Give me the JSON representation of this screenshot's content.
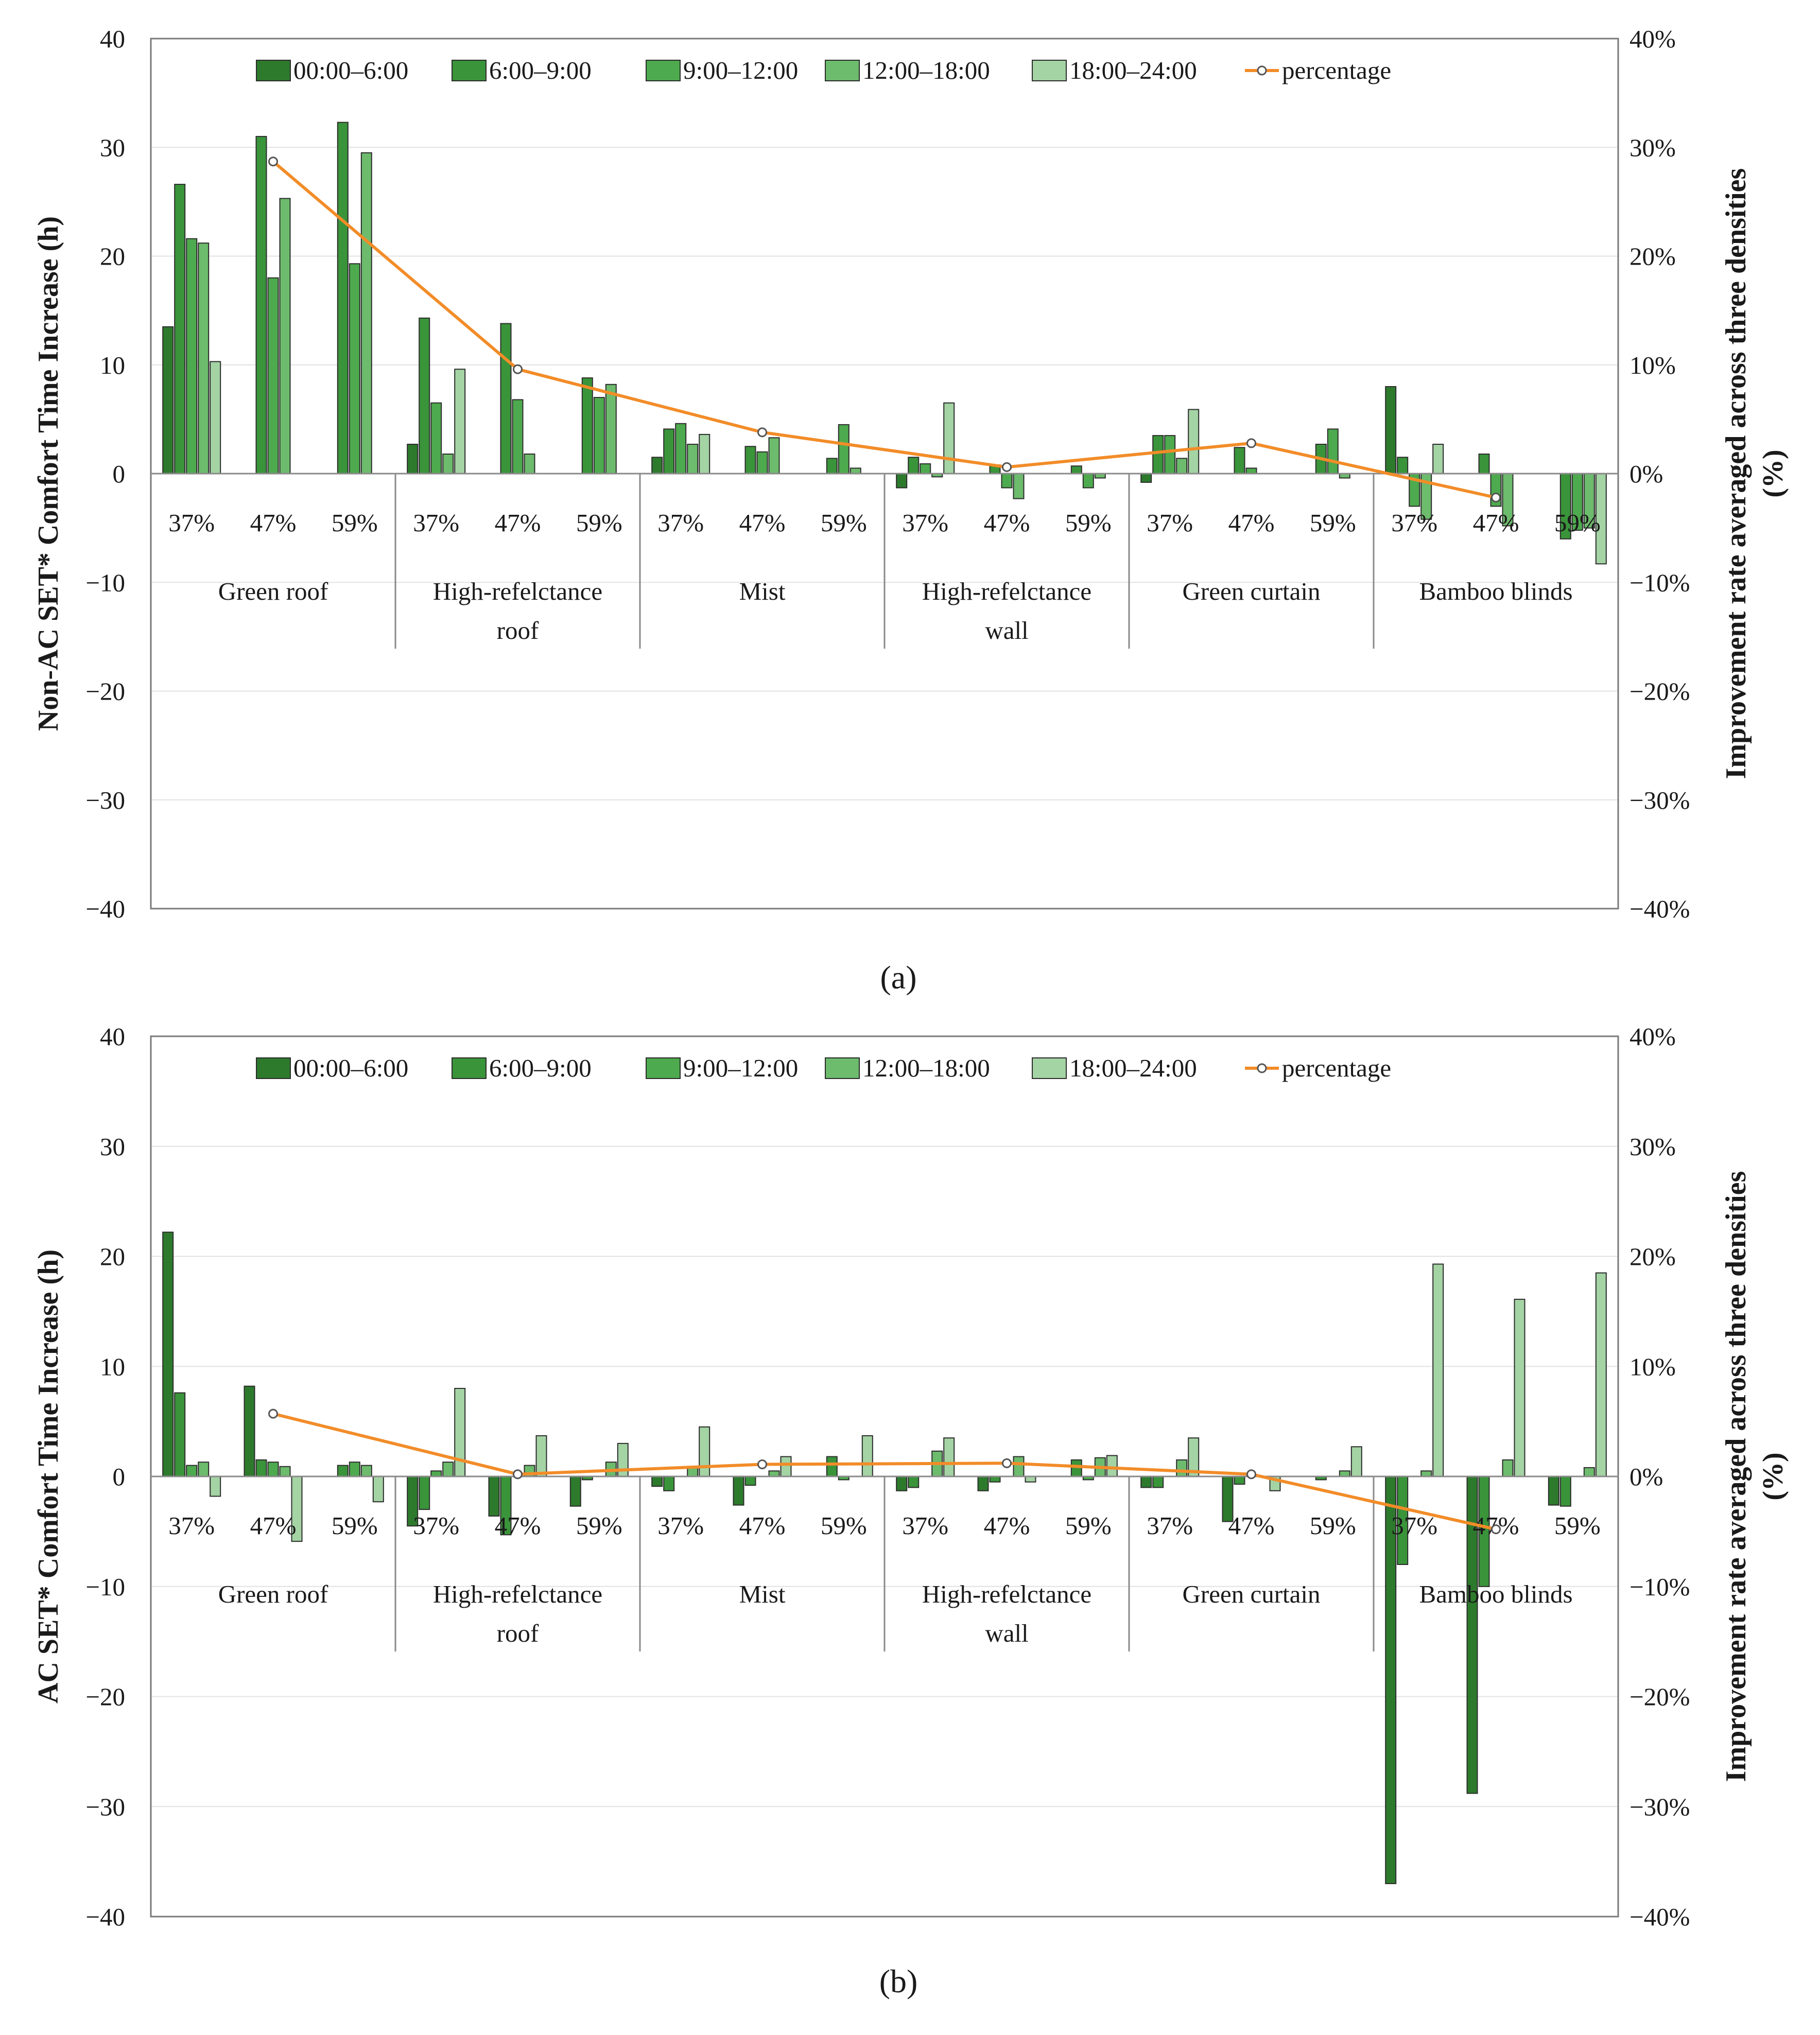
{
  "chart_data": [
    {
      "type": "bar",
      "panel_label": "(a)",
      "ylabel": "Non-AC SET* Comfort Time Increase (h)",
      "y2label": "Improvement rate averaged across three densities (%)",
      "ylim": [
        -40,
        40
      ],
      "y2lim": [
        -40,
        40
      ],
      "yticks": [
        "40",
        "30",
        "20",
        "10",
        "0",
        "−10",
        "−20",
        "−30",
        "−40"
      ],
      "y2ticks": [
        "40%",
        "30%",
        "20%",
        "10%",
        "0%",
        "−10%",
        "−20%",
        "−30%",
        "−40%"
      ],
      "groups": [
        {
          "name": "Green roof",
          "lines": [
            "Green roof"
          ]
        },
        {
          "name": "High-refelctance roof",
          "lines": [
            "High-refelctance",
            "roof"
          ]
        },
        {
          "name": "Mist",
          "lines": [
            "Mist"
          ]
        },
        {
          "name": "High-refelctance wall",
          "lines": [
            "High-refelctance",
            "wall"
          ]
        },
        {
          "name": "Green curtain",
          "lines": [
            "Green curtain"
          ]
        },
        {
          "name": "Bamboo blinds",
          "lines": [
            "Bamboo blinds"
          ]
        }
      ],
      "densities": [
        "37%",
        "47%",
        "59%"
      ],
      "series": [
        {
          "name": "00:00–6:00",
          "color": "#2d7a2d",
          "values": [
            13.5,
            0,
            0,
            2.7,
            0,
            0,
            1.5,
            0,
            0,
            -1.3,
            0,
            0,
            -0.8,
            0,
            0,
            8.0,
            0,
            0
          ]
        },
        {
          "name": "6:00–9:00",
          "color": "#3a943a",
          "values": [
            26.6,
            31.0,
            32.3,
            14.3,
            13.8,
            8.8,
            4.1,
            2.5,
            1.4,
            1.5,
            0.8,
            0.7,
            3.5,
            2.4,
            2.7,
            1.5,
            1.8,
            -6.0
          ]
        },
        {
          "name": "9:00–12:00",
          "color": "#4eaa4e",
          "values": [
            21.6,
            18.0,
            19.3,
            6.5,
            6.8,
            7.0,
            4.6,
            2.0,
            4.5,
            0.9,
            -1.3,
            -1.3,
            3.5,
            0.5,
            4.1,
            -3.0,
            -3.0,
            -5.2
          ]
        },
        {
          "name": "12:00–18:00",
          "color": "#6dbb6d",
          "values": [
            21.2,
            25.3,
            29.5,
            1.8,
            1.8,
            8.2,
            2.7,
            3.3,
            0.5,
            -0.3,
            -2.3,
            -0.4,
            1.4,
            0,
            -0.4,
            -4.2,
            -4.8,
            -5.0
          ]
        },
        {
          "name": "18:00–24:00",
          "color": "#a4d3a4",
          "values": [
            10.3,
            0,
            0,
            9.6,
            0,
            0,
            3.6,
            0,
            0,
            6.5,
            0,
            0,
            5.9,
            0,
            0,
            2.7,
            0,
            -8.3
          ]
        }
      ],
      "percentage": {
        "name": "percentage",
        "color": "#f28c28",
        "values": [
          28.7,
          9.6,
          3.8,
          0.6,
          2.8,
          -2.2
        ]
      }
    },
    {
      "type": "bar",
      "panel_label": "(b)",
      "ylabel": "AC SET* Comfort Time Increase (h)",
      "y2label": "Improvement rate averaged across three densities (%)",
      "ylim": [
        -40,
        40
      ],
      "y2lim": [
        -40,
        40
      ],
      "yticks": [
        "40",
        "30",
        "20",
        "10",
        "0",
        "−10",
        "−20",
        "−30",
        "−40"
      ],
      "y2ticks": [
        "40%",
        "30%",
        "20%",
        "10%",
        "0%",
        "−10%",
        "−20%",
        "−30%",
        "−40%"
      ],
      "groups": [
        {
          "name": "Green roof",
          "lines": [
            "Green roof"
          ]
        },
        {
          "name": "High-refelctance roof",
          "lines": [
            "High-refelctance",
            "roof"
          ]
        },
        {
          "name": "Mist",
          "lines": [
            "Mist"
          ]
        },
        {
          "name": "High-refelctance wall",
          "lines": [
            "High-refelctance",
            "wall"
          ]
        },
        {
          "name": "Green curtain",
          "lines": [
            "Green curtain"
          ]
        },
        {
          "name": "Bamboo blinds",
          "lines": [
            "Bamboo blinds"
          ]
        }
      ],
      "densities": [
        "37%",
        "47%",
        "59%"
      ],
      "series": [
        {
          "name": "00:00–6:00",
          "color": "#2d7a2d",
          "values": [
            22.2,
            8.2,
            0,
            -4.5,
            -3.6,
            -2.7,
            -0.9,
            -2.6,
            0,
            -1.3,
            -1.3,
            0,
            -1.0,
            -4.1,
            0,
            -37.0,
            -28.8,
            -2.6
          ]
        },
        {
          "name": "6:00–9:00",
          "color": "#3a943a",
          "values": [
            7.6,
            1.5,
            1.0,
            -3.0,
            -5.3,
            -0.3,
            -1.3,
            -0.8,
            1.8,
            -1.0,
            -0.5,
            1.5,
            -1.0,
            -0.7,
            -0.3,
            -8.0,
            -10.0,
            -2.7
          ]
        },
        {
          "name": "9:00–12:00",
          "color": "#4eaa4e",
          "values": [
            1.0,
            1.3,
            1.3,
            0.5,
            0,
            0,
            0,
            0,
            -0.3,
            0,
            0,
            -0.3,
            0,
            0,
            0,
            0,
            0,
            0
          ]
        },
        {
          "name": "12:00–18:00",
          "color": "#6dbb6d",
          "values": [
            1.3,
            0.9,
            1.0,
            1.3,
            1.0,
            1.3,
            0.9,
            0.5,
            0,
            2.3,
            1.8,
            1.7,
            1.5,
            0,
            0.5,
            0.5,
            1.5,
            0.8
          ]
        },
        {
          "name": "18:00–24:00",
          "color": "#a4d3a4",
          "values": [
            -1.8,
            -5.9,
            -2.3,
            8.0,
            3.7,
            3.0,
            4.5,
            1.8,
            3.7,
            3.5,
            -0.5,
            1.9,
            3.5,
            -1.3,
            2.7,
            19.3,
            16.1,
            18.5
          ]
        }
      ],
      "percentage": {
        "name": "percentage",
        "color": "#f28c28",
        "values": [
          5.7,
          0.2,
          1.1,
          1.2,
          0.2,
          -4.8
        ]
      }
    }
  ]
}
